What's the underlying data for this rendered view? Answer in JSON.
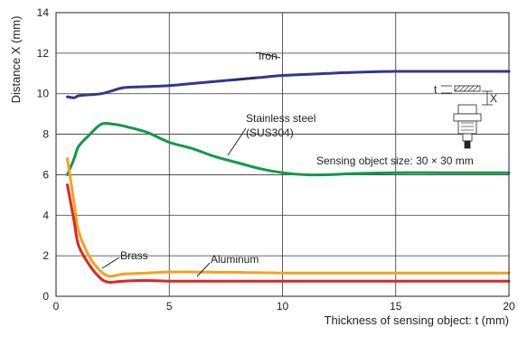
{
  "chart_data": {
    "type": "line",
    "title": "",
    "xlabel": "Thickness of sensing object: t (mm)",
    "ylabel": "Distance X (mm)",
    "xlim": [
      0,
      20
    ],
    "ylim": [
      0,
      14
    ],
    "xticks": [
      "0",
      "5",
      "10",
      "15",
      "20"
    ],
    "yticks": [
      "0",
      "2",
      "4",
      "6",
      "8",
      "10",
      "12",
      "14"
    ],
    "grid": true,
    "series": [
      {
        "name": "Iron",
        "color": "#2e3a8c",
        "x": [
          0.5,
          0.8,
          1.0,
          1.5,
          2.0,
          2.5,
          3.0,
          4.0,
          5.0,
          6.0,
          7.0,
          8.0,
          9.0,
          10.0,
          11.0,
          12.0,
          13.0,
          15.0,
          17.0,
          20.0
        ],
        "y": [
          9.85,
          9.8,
          9.9,
          9.95,
          10.0,
          10.15,
          10.3,
          10.35,
          10.4,
          10.5,
          10.6,
          10.7,
          10.8,
          10.9,
          10.95,
          11.0,
          11.05,
          11.1,
          11.1,
          11.1
        ]
      },
      {
        "name": "Stainless steel (SUS304)",
        "color": "#0d9a48",
        "x": [
          0.5,
          0.8,
          1.0,
          1.5,
          2.0,
          2.5,
          3.0,
          4.0,
          5.0,
          6.0,
          7.0,
          8.0,
          9.0,
          10.0,
          11.0,
          12.0,
          13.0,
          15.0,
          17.0,
          20.0
        ],
        "y": [
          6.0,
          6.8,
          7.4,
          8.0,
          8.5,
          8.5,
          8.4,
          8.1,
          7.6,
          7.3,
          6.9,
          6.6,
          6.3,
          6.1,
          6.0,
          6.0,
          6.05,
          6.1,
          6.1,
          6.1
        ]
      },
      {
        "name": "Brass",
        "color": "#f3a21f",
        "x": [
          0.5,
          0.8,
          1.0,
          1.5,
          2.0,
          2.3,
          2.5,
          3.0,
          4.0,
          5.0,
          6.0,
          8.0,
          10.0,
          13.0,
          16.0,
          20.0
        ],
        "y": [
          6.8,
          4.6,
          3.2,
          1.9,
          1.2,
          1.0,
          1.0,
          1.1,
          1.15,
          1.2,
          1.2,
          1.18,
          1.15,
          1.15,
          1.15,
          1.15
        ]
      },
      {
        "name": "Aluminum",
        "color": "#e02424",
        "x": [
          0.5,
          0.8,
          1.0,
          1.5,
          2.0,
          2.3,
          2.5,
          3.0,
          4.0,
          5.0,
          6.0,
          8.0,
          10.0,
          13.0,
          16.0,
          20.0
        ],
        "y": [
          5.5,
          3.7,
          2.5,
          1.5,
          0.85,
          0.7,
          0.7,
          0.75,
          0.78,
          0.75,
          0.75,
          0.75,
          0.75,
          0.75,
          0.75,
          0.75
        ]
      }
    ],
    "annotations": {
      "sensing_size": "Sensing object size: 30 × 30 mm",
      "diagram_t": "t",
      "diagram_x": "X"
    }
  }
}
